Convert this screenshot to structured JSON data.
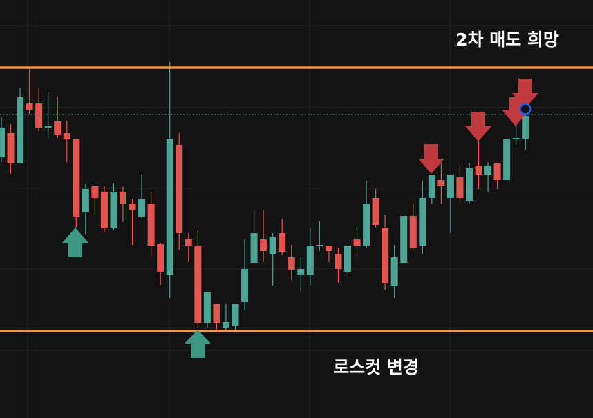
{
  "chart_data": {
    "type": "candlestick",
    "ylim": [
      0,
      606
    ],
    "up_color": "#4da597",
    "down_color": "#e0554f",
    "open": [
      378,
      413,
      369,
      456,
      456,
      421,
      430,
      413,
      405,
      298,
      336,
      328,
      275,
      328,
      310,
      292,
      310,
      252,
      208,
      396,
      259,
      250,
      138,
      165,
      131,
      134,
      168,
      225,
      259,
      238,
      268,
      233,
      208,
      208,
      249,
      250,
      238,
      212,
      259,
      250,
      319,
      276,
      191,
      225,
      293,
      250,
      319,
      345,
      319,
      349,
      315,
      366,
      353,
      370,
      345,
      404,
      405
    ],
    "high": [
      436,
      426,
      478,
      506,
      478,
      473,
      466,
      431,
      405,
      339,
      336,
      336,
      340,
      336,
      318,
      353,
      328,
      254,
      516,
      413,
      268,
      272,
      182,
      165,
      165,
      165,
      259,
      302,
      302,
      268,
      289,
      251,
      233,
      276,
      285,
      250,
      246,
      250,
      276,
      344,
      332,
      294,
      251,
      293,
      310,
      344,
      353,
      370,
      353,
      370,
      370,
      401,
      370,
      370,
      405,
      431,
      456
    ],
    "low": [
      371,
      354,
      369,
      441,
      416,
      406,
      406,
      371,
      276,
      266,
      294,
      269,
      273,
      284,
      251,
      290,
      234,
      193,
      174,
      244,
      226,
      131,
      131,
      128,
      128,
      128,
      156,
      225,
      226,
      192,
      236,
      200,
      183,
      192,
      242,
      226,
      196,
      210,
      234,
      246,
      276,
      186,
      174,
      225,
      242,
      238,
      310,
      310,
      268,
      310,
      310,
      332,
      328,
      332,
      345,
      396,
      389
    ],
    "close": [
      421,
      369,
      465,
      446,
      421,
      423,
      411,
      404,
      292,
      332,
      319,
      275,
      328,
      310,
      302,
      318,
      250,
      212,
      405,
      268,
      250,
      138,
      182,
      138,
      139,
      165,
      216,
      268,
      242,
      263,
      241,
      215,
      216,
      250,
      251,
      242,
      216,
      250,
      250,
      310,
      280,
      195,
      233,
      293,
      246,
      319,
      353,
      336,
      353,
      319,
      362,
      353,
      366,
      345,
      405,
      406,
      438
    ],
    "levels": [
      {
        "value": 508,
        "color": "#f0963a",
        "style": "solid"
      },
      {
        "value": 440,
        "color": "#3f9c8c",
        "style": "dotted"
      },
      {
        "value": 126,
        "color": "#f0963a",
        "style": "solid"
      }
    ],
    "annotations": [
      "2차 매도 희망",
      "로스컷 변경"
    ]
  }
}
